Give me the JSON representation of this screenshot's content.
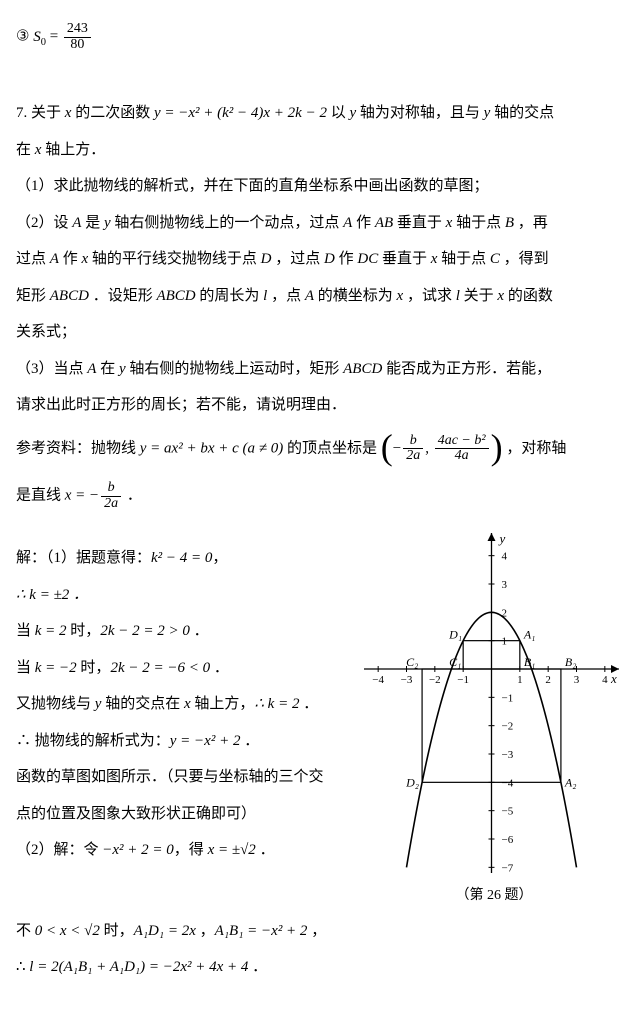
{
  "eq3_label": "③",
  "eq3_lhs": "S",
  "eq3_sub": "0",
  "eq3_eq": " = ",
  "eq3_num": "243",
  "eq3_den": "80",
  "q7_intro_a": "7. 关于 ",
  "q7_intro_x": "x",
  "q7_intro_b": " 的二次函数 ",
  "q7_intro_eq": "y = −x² + (k² − 4)x + 2k − 2",
  "q7_intro_c": " 以 ",
  "q7_intro_y": "y",
  "q7_intro_d": " 轴为对称轴，且与 ",
  "q7_intro_y2": "y",
  "q7_intro_e": " 轴的交点",
  "q7_intro_f": "在 ",
  "q7_intro_x2": "x",
  "q7_intro_g": " 轴上方．",
  "q7_1": "（1）求此抛物线的解析式，并在下面的直角坐标系中画出函数的草图；",
  "q7_2a": "（2）设 ",
  "q7_2_A": "A",
  "q7_2b": " 是 ",
  "q7_2_y": "y",
  "q7_2c": " 轴右侧抛物线上的一个动点，过点 ",
  "q7_2_A2": "A",
  "q7_2d": " 作 ",
  "q7_2_AB": "AB",
  "q7_2e": " 垂直于 ",
  "q7_2_x": "x",
  "q7_2f": " 轴于点 ",
  "q7_2_B": "B",
  "q7_2g": " ，再",
  "q7_2h": "过点 ",
  "q7_2_A3": "A",
  "q7_2i": " 作 ",
  "q7_2_x2": "x",
  "q7_2j": " 轴的平行线交抛物线于点 ",
  "q7_2_D": "D",
  "q7_2k": " ，过点 ",
  "q7_2_D2": "D",
  "q7_2l": " 作 ",
  "q7_2_DC": "DC",
  "q7_2m": " 垂直于 ",
  "q7_2_x3": "x",
  "q7_2n": " 轴于点 ",
  "q7_2_C": "C",
  "q7_2o": " ，得到",
  "q7_2p": "矩形 ",
  "q7_2_ABCD": "ABCD",
  "q7_2q": " ．设矩形 ",
  "q7_2_ABCD2": "ABCD",
  "q7_2r": " 的周长为 ",
  "q7_2_l": "l",
  "q7_2s": " ，点 ",
  "q7_2_A4": "A",
  "q7_2t": " 的横坐标为 ",
  "q7_2_x4": "x",
  "q7_2u": " ，试求 ",
  "q7_2_l2": "l",
  "q7_2v": " 关于 ",
  "q7_2_x5": "x",
  "q7_2w": " 的函数",
  "q7_2x": "关系式；",
  "q7_3a": "（3）当点 ",
  "q7_3_A": "A",
  "q7_3b": " 在 ",
  "q7_3_y": "y",
  "q7_3c": " 轴右侧的抛物线上运动时，矩形 ",
  "q7_3_ABCD": "ABCD",
  "q7_3d": " 能否成为正方形．若能，",
  "q7_3e": "请求出此时正方形的周长；若不能，请说明理由．",
  "ref_a": "参考资料：抛物线 ",
  "ref_eq": "y = ax² + bx + c (a ≠ 0)",
  "ref_b": " 的顶点坐标是 ",
  "ref_vx_num": "b",
  "ref_vx_den": "2a",
  "ref_vy_num": "4ac − b²",
  "ref_vy_den": "4a",
  "ref_c": "，对称轴",
  "ref_d": "是直线 ",
  "ref_axis_lhs": "x = −",
  "ref_axis_num": "b",
  "ref_axis_den": "2a",
  "ref_e": " ．",
  "sol1_a": "解：（1）据题意得：",
  "sol1_eq1": "k² − 4 = 0",
  "sol1_b": "，",
  "sol1_c": "∴ k = ±2 ．",
  "sol1_d": "当 ",
  "sol1_eq2": "k = 2",
  "sol1_e": " 时，",
  "sol1_eq3": "2k − 2 = 2 > 0",
  "sol1_f": " ．",
  "sol1_g": "当 ",
  "sol1_eq4": "k = −2",
  "sol1_h": " 时，",
  "sol1_eq5": "2k − 2 = −6 < 0",
  "sol1_i": " ．",
  "sol1_j": "又抛物线与 ",
  "sol1_y": "y",
  "sol1_k": " 轴的交点在 ",
  "sol1_x": "x",
  "sol1_l": " 轴上方，",
  "sol1_eq6": "∴ k = 2",
  "sol1_m": " ．",
  "sol1_n": "∴ 抛物线的解析式为：",
  "sol1_eq7": "y = −x² + 2",
  "sol1_o": " ．",
  "sol1_p": "函数的草图如图所示．（只要与坐标轴的三个交",
  "sol1_q": "点的位置及图象大致形状正确即可）",
  "sol2_a": "（2）解：令 ",
  "sol2_eq1": "−x² + 2 = 0",
  "sol2_b": "，得 ",
  "sol2_eq2": "x = ±√2",
  "sol2_c": " ．",
  "sol2_d": "不 ",
  "sol2_eq3": "0 < x < √2",
  "sol2_e": " 时，",
  "sol2_eq4": "A₁D₁ = 2x",
  "sol2_f": " ，",
  "sol2_eq5": "A₁B₁ = −x² + 2",
  "sol2_g": " ，",
  "sol2_h": "∴ ",
  "sol2_eq6": "l = 2(A₁B₁ + A₁D₁) = −2x² + 4x + 4",
  "sol2_i": " ．",
  "graph": {
    "xmin": -4.5,
    "xmax": 4.5,
    "ymin": -7.2,
    "ymax": 4.8,
    "xticks": [
      -4,
      -3,
      -2,
      -1,
      1,
      2,
      3,
      4
    ],
    "yticks": [
      -7,
      -6,
      -5,
      -4,
      -3,
      -2,
      -1,
      1,
      2,
      3,
      4
    ],
    "axis_color": "#000000",
    "curve_color": "#000000",
    "rect_color": "#000000",
    "labels": {
      "x": "x",
      "y": "y",
      "D1": "D₁",
      "A1": "A₁",
      "C1": "C₁",
      "B1": "B₁",
      "C2": "C₂",
      "B2": "B₂",
      "D2": "D₂",
      "A2": "A₂"
    },
    "caption": "（第 26 题）"
  }
}
